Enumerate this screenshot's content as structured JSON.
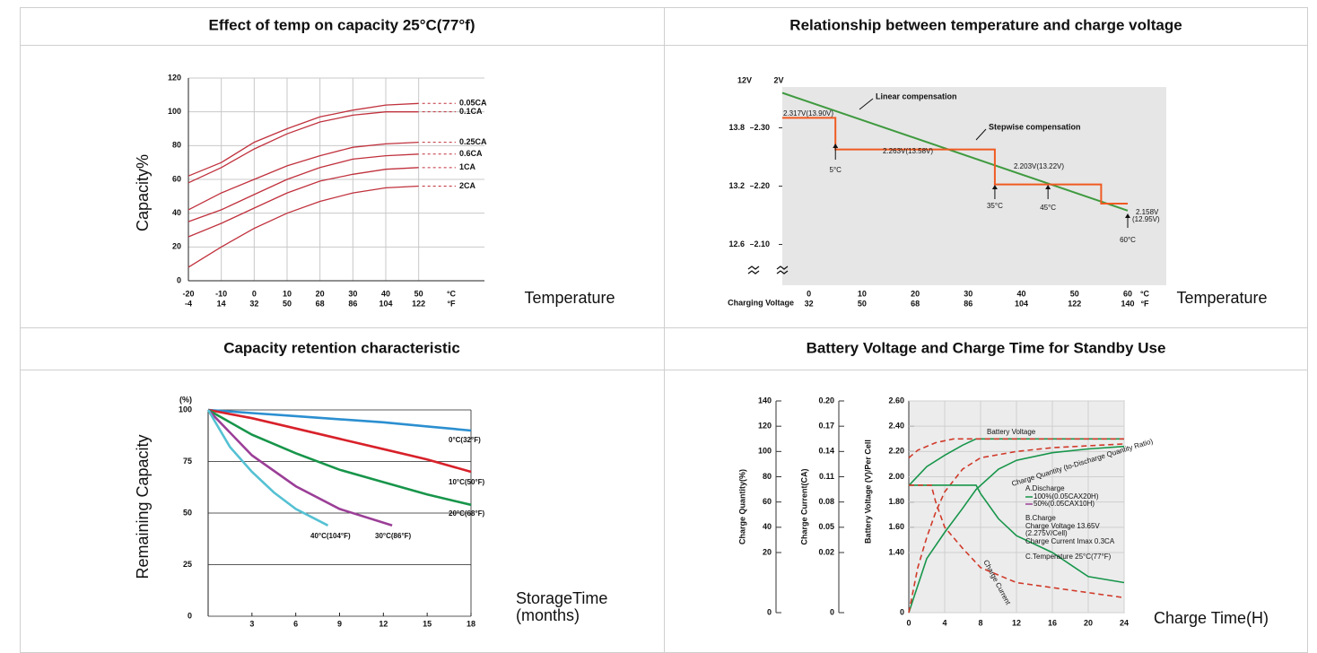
{
  "chart_data": [
    {
      "type": "line",
      "title": "Effect of temp on capacity 25°C(77°f)",
      "x_label": "Temperature",
      "y_label": "Capacity%",
      "x_unit": "°C",
      "x2_unit": "°F",
      "x": [
        -20,
        -10,
        0,
        10,
        20,
        30,
        40,
        50
      ],
      "xlim": [
        -20,
        70
      ],
      "xticks": [
        -20,
        -10,
        0,
        10,
        20,
        30,
        40,
        50
      ],
      "x2lim": [
        -4,
        158
      ],
      "x2ticks": [
        -4,
        14,
        32,
        50,
        68,
        86,
        104,
        122
      ],
      "ylim": [
        0,
        120
      ],
      "yticks": [
        0,
        20,
        40,
        60,
        80,
        100,
        120
      ],
      "grid": true,
      "series": [
        {
          "name": "0.05CA",
          "color": "#c0313d",
          "values": [
            62,
            70,
            82,
            90,
            97,
            101,
            104,
            105
          ]
        },
        {
          "name": "0.1CA",
          "color": "#c0313d",
          "values": [
            58,
            67,
            78,
            87,
            94,
            98,
            100,
            100
          ]
        },
        {
          "name": "0.25CA",
          "color": "#c0313d",
          "values": [
            42,
            52,
            60,
            68,
            74,
            79,
            81,
            82
          ]
        },
        {
          "name": "0.6CA",
          "color": "#c0313d",
          "values": [
            35,
            42,
            51,
            60,
            67,
            72,
            74,
            75
          ]
        },
        {
          "name": "1CA",
          "color": "#c0313d",
          "values": [
            26,
            34,
            43,
            52,
            59,
            63,
            66,
            67
          ]
        },
        {
          "name": "2CA",
          "color": "#c0313d",
          "values": [
            8,
            20,
            31,
            40,
            47,
            52,
            55,
            56
          ]
        }
      ]
    },
    {
      "type": "line",
      "title": "Relationship between temperature and charge voltage",
      "x_label": "Temperature",
      "x_prefix": "Charging Voltage",
      "x_unit": "°C",
      "x2_unit": "°F",
      "y_unit": "2V",
      "y2_unit": "12V",
      "xlim": [
        -5,
        60
      ],
      "xticks": [
        0,
        10,
        20,
        30,
        40,
        50,
        60
      ],
      "x2lim": [
        23,
        140
      ],
      "x2ticks": [
        32,
        50,
        68,
        86,
        104,
        122,
        140
      ],
      "ylim": [
        2.03,
        2.37
      ],
      "yticks": [
        {
          "value": 2.1,
          "label": "2.10"
        },
        {
          "value": 2.2,
          "label": "2.20"
        },
        {
          "value": 2.3,
          "label": "2.30"
        }
      ],
      "y2lim": [
        12.18,
        14.22
      ],
      "y2ticks": [
        12.6,
        13.2,
        13.8
      ],
      "series": [
        {
          "name": "Linear compensation",
          "color": "#3f9a3f",
          "x": [
            -5,
            60
          ],
          "values": [
            2.36,
            2.158
          ]
        },
        {
          "name": "Stepwise compensation",
          "color": "#f05a22",
          "x": [
            -5,
            5,
            5,
            35,
            35,
            55,
            55,
            60
          ],
          "values": [
            2.317,
            2.317,
            2.263,
            2.263,
            2.203,
            2.203,
            2.17,
            2.17
          ]
        }
      ],
      "annotations": [
        "2.317V(13.90V)",
        "2.263V(13.58V)",
        "2.203V(13.22V)",
        "2.158V",
        "(12.95V)"
      ],
      "markers": [
        {
          "value": 5,
          "label": "5°C"
        },
        {
          "value": 35,
          "label": "35°C"
        },
        {
          "value": 45,
          "label": "45°C"
        },
        {
          "value": 60,
          "label": "60°C"
        }
      ]
    },
    {
      "type": "line",
      "title": "Capacity retention characteristic",
      "x_label": [
        "StorageTime",
        "(months)"
      ],
      "y_label": "Remaining Capacity",
      "y_unit": "(%)",
      "xlim": [
        0,
        18
      ],
      "xticks": [
        3,
        6,
        9,
        12,
        15,
        18
      ],
      "ylim": [
        0,
        100
      ],
      "yticks": [
        0,
        25,
        50,
        75,
        100
      ],
      "grid": true,
      "series": [
        {
          "name": "0°C(32°F)",
          "color": "#2b8fd0",
          "x": [
            0,
            3,
            6,
            9,
            12,
            15,
            18
          ],
          "values": [
            100,
            98.5,
            97,
            95.5,
            94,
            92,
            90
          ]
        },
        {
          "name": "10°C(50°F)",
          "color": "#d8212a",
          "x": [
            0,
            3,
            6,
            9,
            12,
            15,
            18
          ],
          "values": [
            100,
            96,
            91,
            86,
            81,
            76,
            70
          ]
        },
        {
          "name": "20°C(68°F)",
          "color": "#17954a",
          "x": [
            0,
            3,
            6,
            9,
            12,
            15,
            18
          ],
          "values": [
            100,
            88,
            79,
            71,
            65,
            59,
            54
          ]
        },
        {
          "name": "30°C(86°F)",
          "color": "#9b3e97",
          "x": [
            0,
            3,
            6,
            9,
            12.6
          ],
          "values": [
            100,
            78,
            63,
            52,
            44
          ]
        },
        {
          "name": "40°C(104°F)",
          "color": "#55c1d3",
          "x": [
            0,
            1.5,
            3,
            4.5,
            6,
            8.2
          ],
          "values": [
            100,
            82,
            70,
            60,
            52,
            44
          ]
        }
      ]
    },
    {
      "type": "line",
      "title": "Battery Voltage and Charge Time for Standby Use",
      "x_label": "Charge Time(H)",
      "xlim": [
        0,
        24
      ],
      "xticks": [
        0,
        4,
        8,
        12,
        16,
        20,
        24
      ],
      "y_label": "Charge Quantity(%)",
      "ylim": [
        0,
        140
      ],
      "yticks": [
        0,
        20,
        40,
        60,
        80,
        100,
        120,
        140
      ],
      "y2_label": "Charge Current(CA)",
      "y2lim": [
        0,
        0.2
      ],
      "y2ticks": [
        0,
        0.02,
        0.05,
        0.08,
        0.11,
        0.14,
        0.17,
        {
          "value": 0.2,
          "label": "0.20"
        }
      ],
      "y3_label": "Battery Voltage (V)/Per Cell",
      "y3lim": [
        0,
        2.6
      ],
      "y3ticks": [
        0,
        {
          "value": 1.4,
          "label": "1.40"
        },
        {
          "value": 1.6,
          "label": "1.60"
        },
        {
          "value": 1.8,
          "label": "1.80"
        },
        {
          "value": 2.0,
          "label": "2.00"
        },
        {
          "value": 2.2,
          "label": "2.20"
        },
        {
          "value": 2.4,
          "label": "2.40"
        },
        {
          "value": 2.6,
          "label": "2.60"
        }
      ],
      "grid": true,
      "series": [
        {
          "name": "Battery Voltage",
          "color": "#17954a",
          "axis": "y3",
          "x": [
            0,
            2,
            4,
            6,
            7.5,
            24
          ],
          "values": [
            1.93,
            2.08,
            2.17,
            2.25,
            2.3,
            2.3
          ]
        },
        {
          "color": "#d03a2a",
          "style": "dashed",
          "axis": "y3",
          "x": [
            0,
            1,
            3,
            5,
            24
          ],
          "values": [
            2.15,
            2.21,
            2.27,
            2.3,
            2.3
          ]
        },
        {
          "name": "Charge Quantity (to-Discharge Quantity Ratio)",
          "color": "#17954a",
          "axis": "y",
          "x": [
            0,
            2,
            4,
            6,
            7.5,
            10,
            12,
            16,
            20,
            24
          ],
          "values": [
            0,
            18,
            36,
            55,
            70,
            86,
            93,
            99,
            102,
            104
          ]
        },
        {
          "color": "#d03a2a",
          "style": "dashed",
          "axis": "y",
          "x": [
            0,
            1,
            2,
            3,
            4,
            6,
            8,
            12,
            16,
            24
          ],
          "values": [
            0,
            15,
            32,
            52,
            68,
            86,
            95,
            100,
            103,
            106
          ]
        },
        {
          "name": "Charge Current",
          "color": "#17954a",
          "axis": "y2",
          "x": [
            0,
            7.5,
            8,
            10,
            12,
            16,
            20,
            24
          ],
          "values": [
            0.1,
            0.1,
            0.09,
            0.06,
            0.04,
            0.02,
            0.012,
            0.01
          ]
        },
        {
          "color": "#d03a2a",
          "style": "dashed",
          "axis": "y2",
          "x": [
            0,
            2.5,
            3,
            4,
            6,
            8,
            12,
            24
          ],
          "values": [
            0.1,
            0.1,
            0.08,
            0.05,
            0.025,
            0.015,
            0.01,
            0.005
          ]
        }
      ],
      "legend": {
        "title": "A.Discharge",
        "items": [
          {
            "name": "100%(0.05CAX20H)",
            "color": "#17954a"
          },
          {
            "name": "50%(0.05CAX10H)",
            "color": "#9b3e97"
          }
        ]
      },
      "notes": [
        "B.Charge",
        "Charge Voltage 13.65V",
        "(2.275V/Cell)",
        "Charge Current Imax 0.3CA",
        "C.Temperature 25°C(77°F)"
      ]
    }
  ]
}
